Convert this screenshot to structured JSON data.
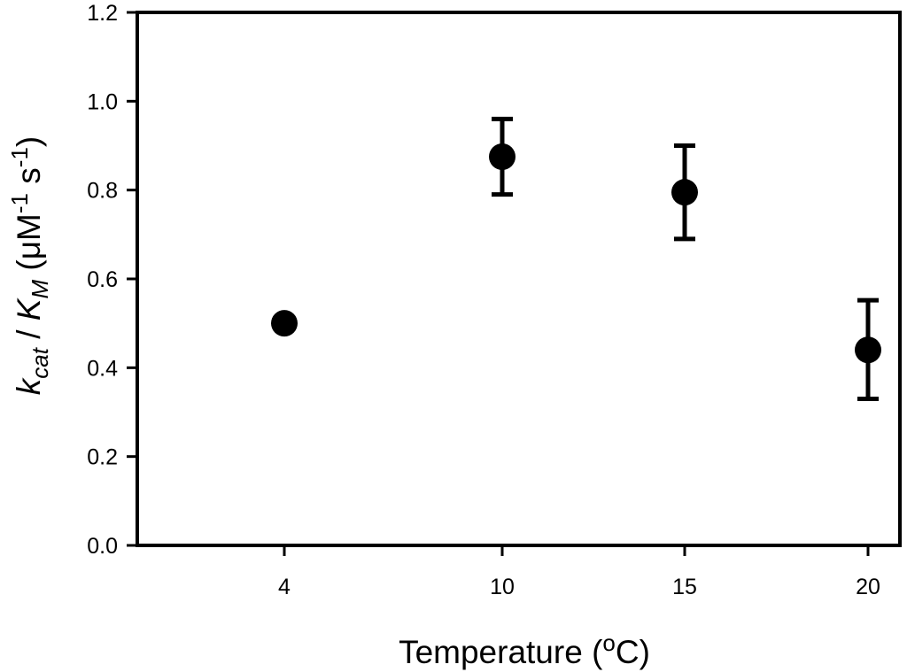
{
  "chart_data": {
    "type": "scatter",
    "title": "",
    "xlabel": {
      "main": "Temperature (",
      "superscript": "o",
      "tail": "C)"
    },
    "ylabel": {
      "k": "k",
      "k_sub": "cat",
      "slash": " / ",
      "K": "K",
      "K_sub": "M",
      "unit_open": " (μM",
      "unit_sup1": "-1",
      "unit_s": " s",
      "unit_sup2": "-1",
      "unit_close": ")"
    },
    "x_categories": [
      "4",
      "10",
      "15",
      "20"
    ],
    "yticks": [
      "0.0",
      "0.2",
      "0.4",
      "0.6",
      "0.8",
      "1.0",
      "1.2"
    ],
    "ylim": [
      0,
      1.2
    ],
    "grid": false,
    "series": [
      {
        "points": [
          {
            "x": "4",
            "y": 0.5,
            "err_low": null,
            "err_high": null
          },
          {
            "x": "10",
            "y": 0.875,
            "err_low": 0.79,
            "err_high": 0.96
          },
          {
            "x": "15",
            "y": 0.795,
            "err_low": 0.69,
            "err_high": 0.9
          },
          {
            "x": "20",
            "y": 0.44,
            "err_low": 0.33,
            "err_high": 0.552
          }
        ]
      }
    ],
    "marker_color": "#000000"
  }
}
